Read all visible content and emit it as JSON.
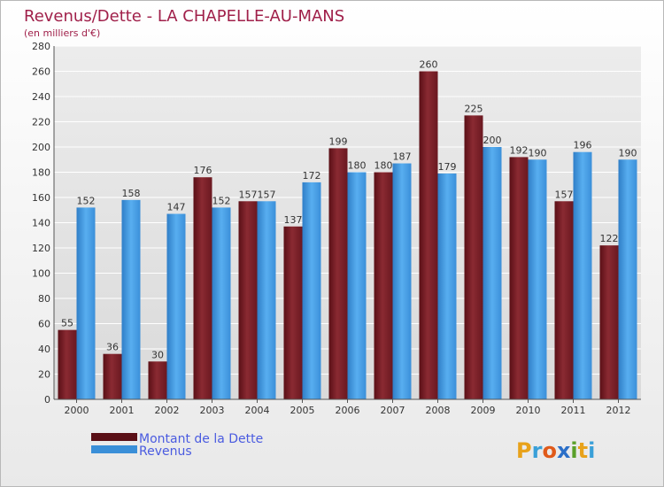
{
  "chart_data": {
    "type": "bar",
    "title": "Revenus/Dette - LA CHAPELLE-AU-MANS",
    "subtitle": "(en milliers d'€)",
    "categories": [
      "2000",
      "2001",
      "2002",
      "2003",
      "2004",
      "2005",
      "2006",
      "2007",
      "2008",
      "2009",
      "2010",
      "2011",
      "2012"
    ],
    "series": [
      {
        "name": "Montant de la Dette",
        "color": "#7a1f27",
        "values": [
          55,
          36,
          30,
          176,
          157,
          137,
          199,
          180,
          260,
          225,
          192,
          157,
          122
        ]
      },
      {
        "name": "Revenus",
        "color": "#3a8fd8",
        "values": [
          152,
          158,
          147,
          152,
          157,
          172,
          180,
          187,
          179,
          200,
          190,
          196,
          190
        ]
      }
    ],
    "ylim": [
      0,
      280
    ],
    "yticks": [
      0,
      20,
      40,
      60,
      80,
      100,
      120,
      140,
      160,
      180,
      200,
      220,
      240,
      260,
      280
    ],
    "grid": true,
    "legend_position": "bottom-left"
  },
  "logo": {
    "text": "Proxiti",
    "letters": [
      "P",
      "r",
      "o",
      "x",
      "i",
      "t",
      "i"
    ],
    "colors": [
      "#e8a21a",
      "#3aa0d8",
      "#e05a1a",
      "#2b6fc8",
      "#5aa02a",
      "#e8a21a",
      "#3aa0d8"
    ]
  }
}
